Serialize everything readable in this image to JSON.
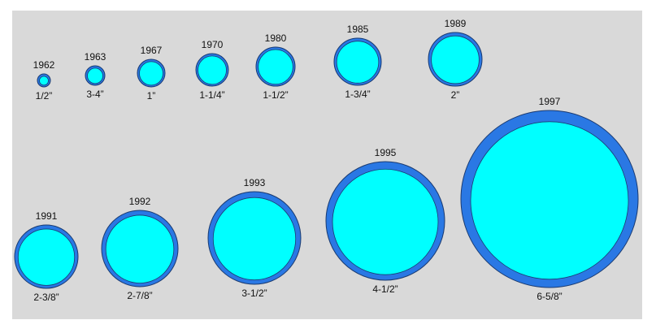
{
  "items": [
    {
      "year": "1962",
      "size": "1/2”"
    },
    {
      "year": "1963",
      "size": "3-4”"
    },
    {
      "year": "1967",
      "size": "1”"
    },
    {
      "year": "1970",
      "size": "1-1/4”"
    },
    {
      "year": "1980",
      "size": "1-1/2”"
    },
    {
      "year": "1985",
      "size": "1-3/4”"
    },
    {
      "year": "1989",
      "size": "2”"
    },
    {
      "year": "1991",
      "size": "2-3/8”"
    },
    {
      "year": "1992",
      "size": "2-7/8”"
    },
    {
      "year": "1993",
      "size": "3-1/2”"
    },
    {
      "year": "1995",
      "size": "4-1/2”"
    },
    {
      "year": "1997",
      "size": "6-5/8”"
    }
  ]
}
